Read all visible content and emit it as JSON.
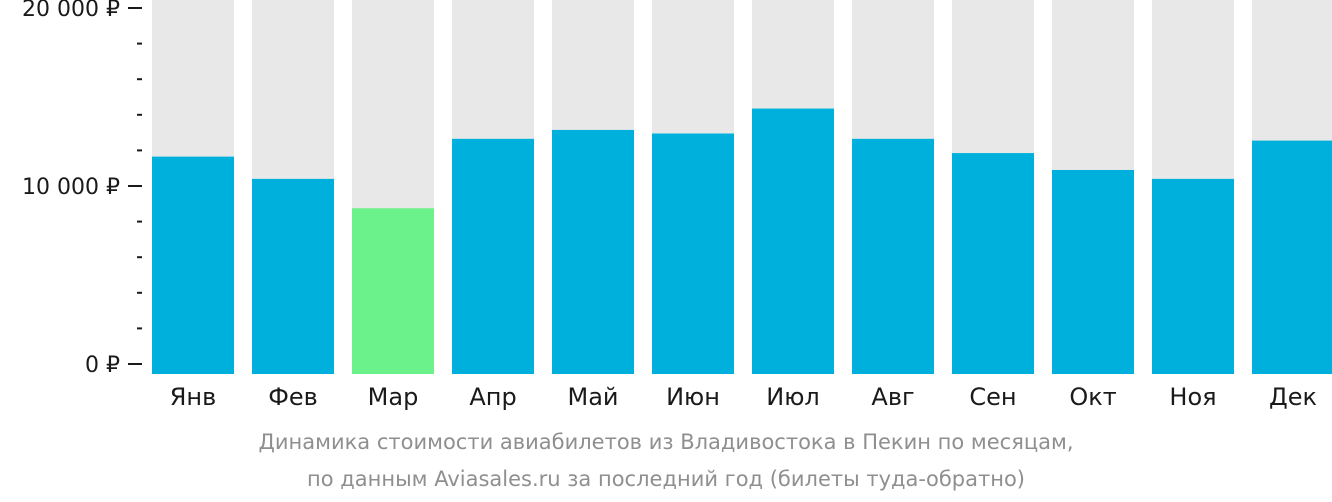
{
  "chart_data": {
    "type": "bar",
    "categories": [
      "Янв",
      "Фев",
      "Мар",
      "Апр",
      "Май",
      "Июн",
      "Июл",
      "Авг",
      "Сен",
      "Окт",
      "Ноя",
      "Дек"
    ],
    "values": [
      11650,
      10400,
      8750,
      12650,
      13150,
      12950,
      14350,
      12650,
      11850,
      10900,
      10400,
      12550
    ],
    "highlight_index": 2,
    "ylim": [
      0,
      20000
    ],
    "yticks": [
      {
        "value": 0,
        "label": "0 ₽"
      },
      {
        "value": 10000,
        "label": "10 000 ₽"
      },
      {
        "value": 20000,
        "label": "20 000 ₽"
      }
    ],
    "minor_tick_step": 2000,
    "title": "",
    "xlabel": "",
    "ylabel": "",
    "grid": false,
    "colors": {
      "bar": "#00b0dc",
      "highlight": "#6cf28a",
      "background_bar": "#e8e8e8",
      "tick": "#1a1a1a"
    }
  },
  "caption": {
    "line1": "Динамика стоимости авиабилетов из Владивостока в Пекин по месяцам,",
    "line2": "по данным Aviasales.ru за последний год (билеты туда-обратно)"
  }
}
